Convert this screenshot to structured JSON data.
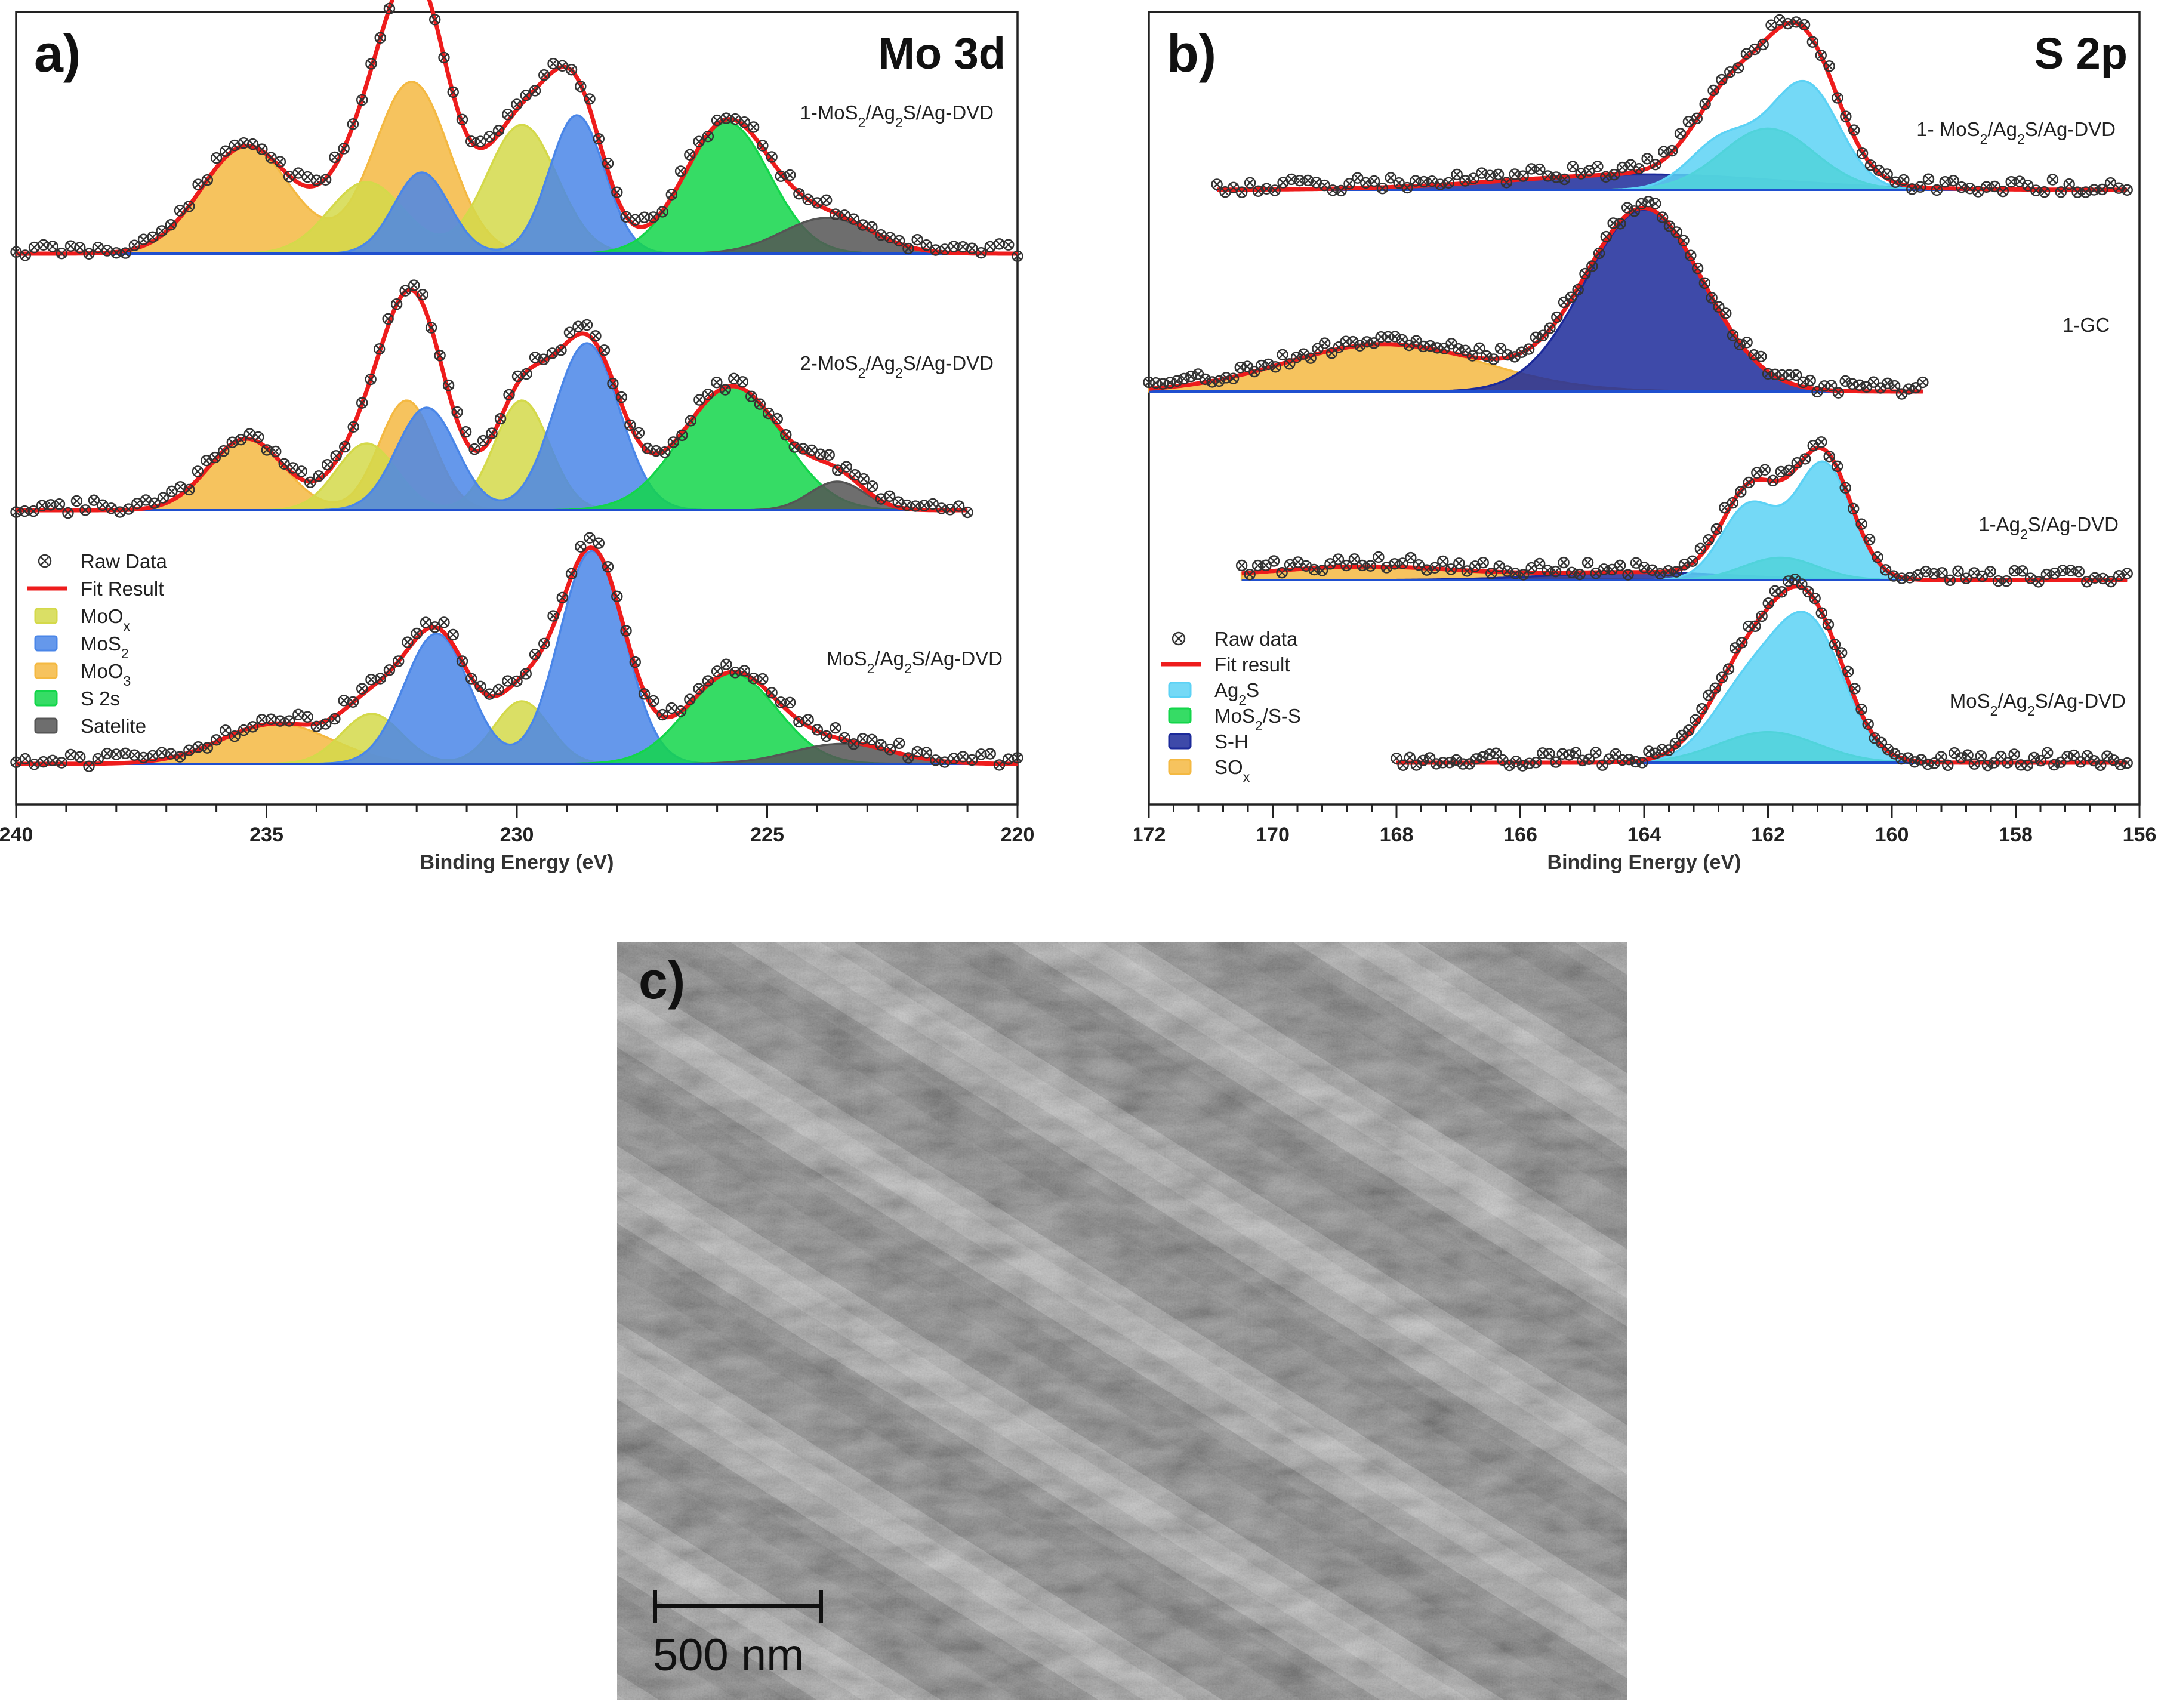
{
  "chart_data": [
    {
      "panel": "a)",
      "title": "Mo 3d",
      "type": "area",
      "xlabel": "Binding Energy (eV)",
      "xlim": [
        240,
        220
      ],
      "xticks": [
        240,
        235,
        230,
        225,
        220
      ],
      "legend": [
        {
          "label": "Raw Data",
          "marker": "circle-x",
          "color": "#333333"
        },
        {
          "label": "Fit Result",
          "marker": "line",
          "color": "#ee1c1c"
        },
        {
          "label": "MoOx",
          "color": "#d4d94a"
        },
        {
          "label": "MoS2",
          "color": "#4a86e8"
        },
        {
          "label": "MoO3",
          "color": "#f4b942"
        },
        {
          "label": "S 2s",
          "color": "#13d64a"
        },
        {
          "label": "Satelite",
          "color": "#555555"
        }
      ],
      "legend_position": "bottom-left",
      "series": [
        {
          "name": "1-MoS2/Ag2S/Ag-DVD",
          "range": [
            240,
            220
          ],
          "components": [
            {
              "name": "MoO3",
              "color": "#f4b942",
              "peaks": [
                [
                  235.4,
                  0.45,
                  0.9
                ],
                [
                  232.1,
                  0.72,
                  0.75
                ]
              ]
            },
            {
              "name": "MoOx",
              "color": "#d4d94a",
              "peaks": [
                [
                  233.0,
                  0.3,
                  0.75
                ],
                [
                  229.9,
                  0.54,
                  0.7
                ]
              ]
            },
            {
              "name": "MoS2",
              "color": "#4a86e8",
              "peaks": [
                [
                  231.9,
                  0.34,
                  0.55
                ],
                [
                  228.8,
                  0.58,
                  0.55
                ]
              ]
            },
            {
              "name": "S 2s",
              "color": "#13d64a",
              "peaks": [
                [
                  225.8,
                  0.55,
                  0.85
                ]
              ]
            },
            {
              "name": "Satelite",
              "color": "#555555",
              "peaks": [
                [
                  223.8,
                  0.15,
                  0.9
                ]
              ]
            }
          ]
        },
        {
          "name": "2-MoS2/Ag2S/Ag-DVD",
          "range": [
            240,
            221
          ],
          "components": [
            {
              "name": "MoO3",
              "color": "#f4b942",
              "peaks": [
                [
                  235.4,
                  0.3,
                  0.75
                ],
                [
                  232.2,
                  0.46,
                  0.55
                ]
              ]
            },
            {
              "name": "MoOx",
              "color": "#d4d94a",
              "peaks": [
                [
                  233.0,
                  0.28,
                  0.6
                ],
                [
                  229.9,
                  0.46,
                  0.55
                ]
              ]
            },
            {
              "name": "MoS2",
              "color": "#4a86e8",
              "peaks": [
                [
                  231.8,
                  0.43,
                  0.6
                ],
                [
                  228.6,
                  0.7,
                  0.65
                ]
              ]
            },
            {
              "name": "S 2s",
              "color": "#13d64a",
              "peaks": [
                [
                  225.7,
                  0.52,
                  1.0
                ]
              ]
            },
            {
              "name": "Satelite",
              "color": "#555555",
              "peaks": [
                [
                  223.6,
                  0.12,
                  0.55
                ]
              ]
            }
          ]
        },
        {
          "name": "MoS2/Ag2S/Ag-DVD",
          "range": [
            240,
            220
          ],
          "components": [
            {
              "name": "MoO3",
              "color": "#f4b942",
              "peaks": [
                [
                  234.8,
                  0.16,
                  1.1
                ]
              ]
            },
            {
              "name": "MoOx",
              "color": "#d4d94a",
              "peaks": [
                [
                  232.9,
                  0.2,
                  0.6
                ],
                [
                  229.9,
                  0.25,
                  0.55
                ]
              ]
            },
            {
              "name": "MoS2",
              "color": "#4a86e8",
              "peaks": [
                [
                  231.6,
                  0.52,
                  0.65
                ],
                [
                  228.5,
                  0.85,
                  0.65
                ]
              ]
            },
            {
              "name": "S 2s",
              "color": "#13d64a",
              "peaks": [
                [
                  225.7,
                  0.36,
                  0.9
                ]
              ]
            },
            {
              "name": "Satelite",
              "color": "#555555",
              "peaks": [
                [
                  223.5,
                  0.08,
                  1.0
                ]
              ]
            }
          ]
        }
      ]
    },
    {
      "panel": "b)",
      "title": "S 2p",
      "type": "area",
      "xlabel": "Binding Energy (eV)",
      "xlim": [
        172,
        156
      ],
      "xticks": [
        172,
        170,
        168,
        166,
        164,
        162,
        160,
        158,
        156
      ],
      "legend": [
        {
          "label": "Raw data",
          "marker": "circle-x",
          "color": "#333333"
        },
        {
          "label": "Fit result",
          "marker": "line",
          "color": "#ee1c1c"
        },
        {
          "label": "Ag2S",
          "color": "#5cd2f5"
        },
        {
          "label": "MoS2/S-S",
          "color": "#13d64a"
        },
        {
          "label": "S-H",
          "color": "#1c2a9a"
        },
        {
          "label": "SOx",
          "color": "#f4b942"
        }
      ],
      "legend_position": "bottom-left",
      "series": [
        {
          "name": "1- MoS2/Ag2S/Ag-DVD",
          "range": [
            170.9,
            156.2
          ],
          "components": [
            {
              "name": "S-H",
              "color": "#1c2a9a",
              "peaks": [
                [
                  164.0,
                  0.09,
                  2.2
                ]
              ]
            },
            {
              "name": "MoS2/S-S",
              "color": "#13d64a",
              "peaks": [
                [
                  162.0,
                  0.36,
                  0.75
                ]
              ]
            },
            {
              "name": "Ag2S",
              "color": "#5cd2f5",
              "peaks": [
                [
                  161.4,
                  0.62,
                  0.55
                ],
                [
                  162.7,
                  0.3,
                  0.55
                ]
              ]
            }
          ]
        },
        {
          "name": "1-GC",
          "range": [
            172,
            159.5
          ],
          "components": [
            {
              "name": "SOx",
              "color": "#f4b942",
              "peaks": [
                [
                  168.2,
                  0.26,
                  1.6
                ]
              ]
            },
            {
              "name": "S-H",
              "color": "#1c2a9a",
              "peaks": [
                [
                  164.0,
                  1.0,
                  0.95
                ]
              ]
            }
          ]
        },
        {
          "name": "1-Ag2S/Ag-DVD",
          "range": [
            170.5,
            156.2
          ],
          "components": [
            {
              "name": "SOx",
              "color": "#f4b942",
              "peaks": [
                [
                  168.5,
                  0.09,
                  1.7
                ]
              ]
            },
            {
              "name": "S-H",
              "color": "#1c2a9a",
              "peaks": [
                [
                  164.0,
                  0.05,
                  1.5
                ]
              ]
            },
            {
              "name": "MoS2/S-S",
              "color": "#13d64a",
              "peaks": [
                [
                  161.8,
                  0.15,
                  0.6
                ]
              ]
            },
            {
              "name": "Ag2S",
              "color": "#5cd2f5",
              "peaks": [
                [
                  161.1,
                  0.78,
                  0.45
                ],
                [
                  162.3,
                  0.5,
                  0.45
                ]
              ]
            }
          ]
        },
        {
          "name": "MoS2/Ag2S/Ag-DVD",
          "range": [
            168,
            156.2
          ],
          "components": [
            {
              "name": "MoS2/S-S",
              "color": "#13d64a",
              "peaks": [
                [
                  162.0,
                  0.18,
                  0.8
                ]
              ]
            },
            {
              "name": "Ag2S",
              "color": "#5cd2f5",
              "peaks": [
                [
                  161.3,
                  0.75,
                  0.55
                ],
                [
                  162.3,
                  0.45,
                  0.6
                ]
              ]
            }
          ]
        }
      ]
    }
  ],
  "sem_image": {
    "panel": "c)",
    "scale_bar_label": "500 nm"
  }
}
